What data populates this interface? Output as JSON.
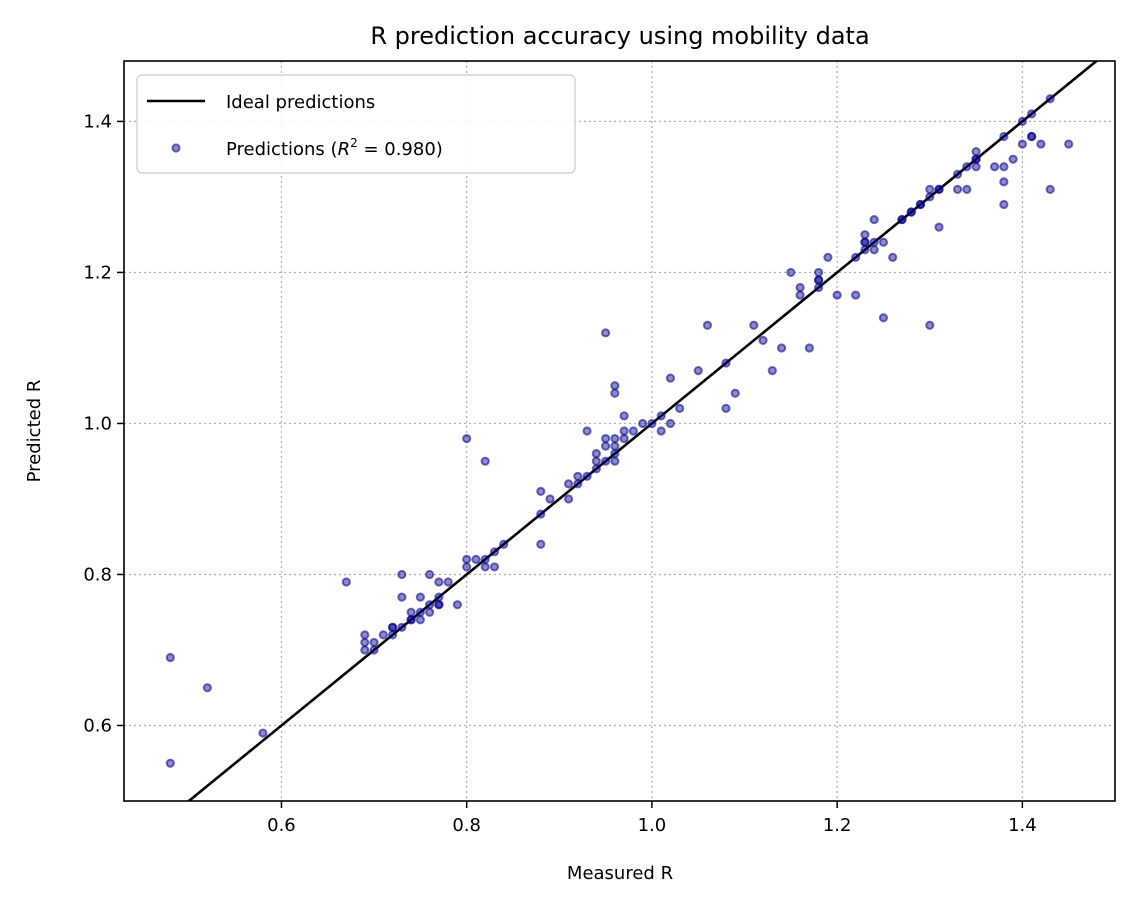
{
  "chart_data": {
    "type": "scatter",
    "title": "R prediction accuracy using mobility data",
    "xlabel": "Measured R",
    "ylabel": "Predicted R",
    "xlim": [
      0.43,
      1.5
    ],
    "ylim": [
      0.5,
      1.48
    ],
    "xticks": [
      0.6,
      0.8,
      1.0,
      1.2,
      1.4
    ],
    "yticks": [
      0.6,
      0.8,
      1.0,
      1.2,
      1.4
    ],
    "xtick_labels": [
      "0.6",
      "0.8",
      "1.0",
      "1.2",
      "1.4"
    ],
    "ytick_labels": [
      "0.6",
      "0.8",
      "1.0",
      "1.2",
      "1.4"
    ],
    "grid": true,
    "legend_position": "top-left",
    "ideal_line": {
      "name": "Ideal predictions",
      "color": "#000000",
      "x": [
        0.43,
        1.5
      ],
      "y": [
        0.43,
        1.5
      ]
    },
    "series": [
      {
        "name": "Predictions",
        "r2_text": "0.980",
        "color": "#00008b",
        "points": [
          [
            0.48,
            0.69
          ],
          [
            0.48,
            0.55
          ],
          [
            0.52,
            0.65
          ],
          [
            0.58,
            0.59
          ],
          [
            0.67,
            0.79
          ],
          [
            0.69,
            0.71
          ],
          [
            0.69,
            0.7
          ],
          [
            0.69,
            0.72
          ],
          [
            0.7,
            0.71
          ],
          [
            0.7,
            0.7
          ],
          [
            0.71,
            0.72
          ],
          [
            0.72,
            0.73
          ],
          [
            0.72,
            0.72
          ],
          [
            0.72,
            0.73
          ],
          [
            0.73,
            0.77
          ],
          [
            0.73,
            0.8
          ],
          [
            0.73,
            0.73
          ],
          [
            0.74,
            0.74
          ],
          [
            0.74,
            0.75
          ],
          [
            0.74,
            0.74
          ],
          [
            0.75,
            0.77
          ],
          [
            0.75,
            0.75
          ],
          [
            0.75,
            0.74
          ],
          [
            0.76,
            0.8
          ],
          [
            0.76,
            0.76
          ],
          [
            0.76,
            0.75
          ],
          [
            0.77,
            0.79
          ],
          [
            0.77,
            0.77
          ],
          [
            0.77,
            0.76
          ],
          [
            0.77,
            0.76
          ],
          [
            0.78,
            0.79
          ],
          [
            0.79,
            0.76
          ],
          [
            0.8,
            0.82
          ],
          [
            0.8,
            0.81
          ],
          [
            0.8,
            0.98
          ],
          [
            0.81,
            0.82
          ],
          [
            0.82,
            0.82
          ],
          [
            0.82,
            0.81
          ],
          [
            0.82,
            0.95
          ],
          [
            0.83,
            0.83
          ],
          [
            0.83,
            0.81
          ],
          [
            0.84,
            0.84
          ],
          [
            0.88,
            0.91
          ],
          [
            0.88,
            0.88
          ],
          [
            0.88,
            0.84
          ],
          [
            0.89,
            0.9
          ],
          [
            0.91,
            0.9
          ],
          [
            0.91,
            0.92
          ],
          [
            0.92,
            0.92
          ],
          [
            0.92,
            0.93
          ],
          [
            0.93,
            0.93
          ],
          [
            0.93,
            0.99
          ],
          [
            0.94,
            0.94
          ],
          [
            0.94,
            0.95
          ],
          [
            0.94,
            0.96
          ],
          [
            0.95,
            0.97
          ],
          [
            0.95,
            0.98
          ],
          [
            0.95,
            0.95
          ],
          [
            0.95,
            1.12
          ],
          [
            0.96,
            0.96
          ],
          [
            0.96,
            0.95
          ],
          [
            0.96,
            0.97
          ],
          [
            0.96,
            0.98
          ],
          [
            0.96,
            1.04
          ],
          [
            0.96,
            1.05
          ],
          [
            0.97,
            0.98
          ],
          [
            0.97,
            0.99
          ],
          [
            0.97,
            1.01
          ],
          [
            0.98,
            0.99
          ],
          [
            0.99,
            1.0
          ],
          [
            1.0,
            1.0
          ],
          [
            1.01,
            1.01
          ],
          [
            1.01,
            0.99
          ],
          [
            1.02,
            1.0
          ],
          [
            1.02,
            1.06
          ],
          [
            1.03,
            1.02
          ],
          [
            1.05,
            1.07
          ],
          [
            1.06,
            1.13
          ],
          [
            1.08,
            1.08
          ],
          [
            1.08,
            1.02
          ],
          [
            1.09,
            1.04
          ],
          [
            1.11,
            1.13
          ],
          [
            1.12,
            1.11
          ],
          [
            1.13,
            1.07
          ],
          [
            1.14,
            1.1
          ],
          [
            1.15,
            1.2
          ],
          [
            1.16,
            1.18
          ],
          [
            1.16,
            1.17
          ],
          [
            1.17,
            1.1
          ],
          [
            1.18,
            1.19
          ],
          [
            1.18,
            1.18
          ],
          [
            1.18,
            1.19
          ],
          [
            1.18,
            1.2
          ],
          [
            1.19,
            1.22
          ],
          [
            1.2,
            1.17
          ],
          [
            1.22,
            1.17
          ],
          [
            1.22,
            1.22
          ],
          [
            1.23,
            1.24
          ],
          [
            1.23,
            1.25
          ],
          [
            1.23,
            1.23
          ],
          [
            1.23,
            1.24
          ],
          [
            1.24,
            1.27
          ],
          [
            1.24,
            1.24
          ],
          [
            1.24,
            1.23
          ],
          [
            1.25,
            1.24
          ],
          [
            1.25,
            1.14
          ],
          [
            1.26,
            1.22
          ],
          [
            1.27,
            1.27
          ],
          [
            1.27,
            1.27
          ],
          [
            1.28,
            1.28
          ],
          [
            1.28,
            1.28
          ],
          [
            1.29,
            1.29
          ],
          [
            1.29,
            1.29
          ],
          [
            1.3,
            1.3
          ],
          [
            1.3,
            1.31
          ],
          [
            1.3,
            1.13
          ],
          [
            1.31,
            1.31
          ],
          [
            1.31,
            1.26
          ],
          [
            1.31,
            1.31
          ],
          [
            1.33,
            1.33
          ],
          [
            1.33,
            1.31
          ],
          [
            1.34,
            1.34
          ],
          [
            1.34,
            1.31
          ],
          [
            1.35,
            1.35
          ],
          [
            1.35,
            1.34
          ],
          [
            1.35,
            1.35
          ],
          [
            1.35,
            1.36
          ],
          [
            1.37,
            1.34
          ],
          [
            1.38,
            1.38
          ],
          [
            1.38,
            1.34
          ],
          [
            1.38,
            1.32
          ],
          [
            1.38,
            1.29
          ],
          [
            1.39,
            1.35
          ],
          [
            1.4,
            1.4
          ],
          [
            1.4,
            1.37
          ],
          [
            1.41,
            1.38
          ],
          [
            1.41,
            1.41
          ],
          [
            1.41,
            1.38
          ],
          [
            1.42,
            1.37
          ],
          [
            1.43,
            1.43
          ],
          [
            1.43,
            1.31
          ],
          [
            1.45,
            1.37
          ]
        ]
      }
    ]
  }
}
